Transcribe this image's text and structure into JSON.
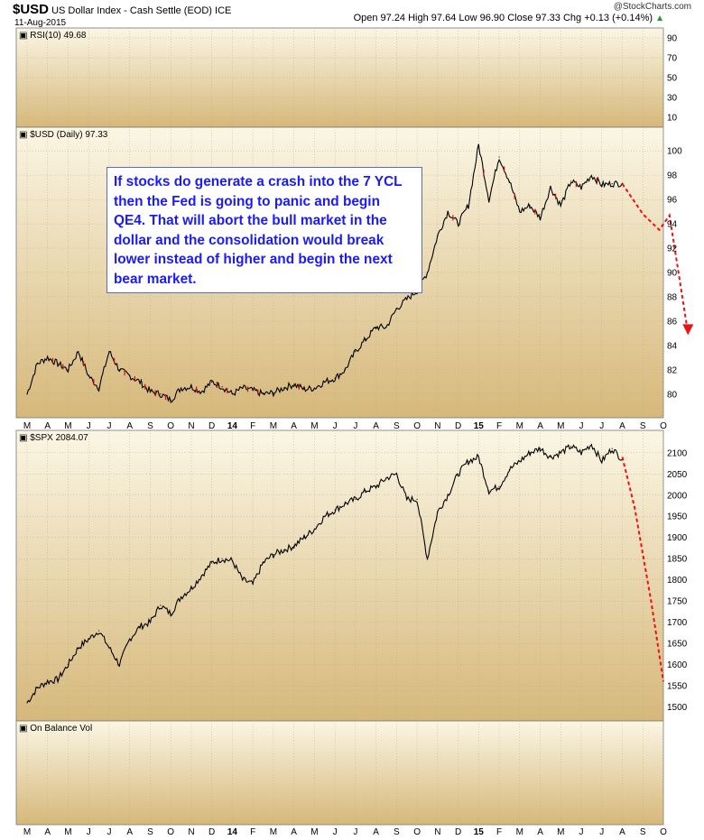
{
  "header": {
    "symbol": "$USD",
    "description": "US Dollar Index - Cash Settle (EOD)  ICE",
    "date": "11-Aug-2015",
    "stats": "Open 97.24  High 97.64  Low 96.90  Close 97.33  Chg +0.13 (+0.14%)",
    "brand": "@StockCharts.com",
    "up_arrow_color": "#1f9a2a"
  },
  "annotation": {
    "text": "If stocks do generate a crash into the 7 YCL then the Fed is going to panic and begin QE4. That will abort the bull market in the dollar and the consolidation would break lower instead of higher and begin the next bear market."
  },
  "colors": {
    "panel_bg": "#ecdcae",
    "grid": "#b8ac8c",
    "price_line": "#000000",
    "down_bar": "#cc1111",
    "projection": "#ee1111"
  },
  "chart_data": [
    {
      "type": "line",
      "panel": "rsi",
      "label": "RSI(10) 49.68",
      "y_ticks": [
        "90",
        "70",
        "50",
        "30",
        "10"
      ],
      "ylim": [
        0,
        100
      ]
    },
    {
      "type": "line",
      "panel": "usd",
      "label": "$USD (Daily) 97.33",
      "ylim": [
        78.5,
        101.5
      ],
      "y_ticks": [
        "100",
        "98",
        "96",
        "94",
        "92",
        "90",
        "88",
        "86",
        "84",
        "82",
        "80"
      ],
      "x_months": [
        "M",
        "A",
        "M",
        "J",
        "J",
        "A",
        "S",
        "O",
        "N",
        "D",
        "14",
        "F",
        "M",
        "A",
        "M",
        "J",
        "J",
        "A",
        "S",
        "O",
        "N",
        "D",
        "15",
        "F",
        "M",
        "A",
        "M",
        "J",
        "J",
        "A",
        "S",
        "O"
      ],
      "series": [
        {
          "x": [
            0,
            0.5,
            1,
            1.5,
            2,
            2.5,
            3,
            3.5,
            4,
            4.5,
            5,
            5.5,
            6,
            6.5,
            7,
            7.5,
            8,
            8.5,
            9,
            9.5,
            10,
            10.5,
            11,
            11.5,
            12,
            12.5,
            13,
            13.5,
            14,
            14.5,
            15,
            15.5,
            16,
            16.5,
            17,
            17.5,
            18,
            18.5,
            19,
            19.5,
            20,
            20.5,
            21,
            21.5,
            22,
            22.5,
            23,
            23.5,
            24,
            24.5,
            25,
            25.5,
            26,
            26.5,
            27,
            27.5,
            28,
            28.5,
            29
          ],
          "y": [
            80.0,
            82.5,
            83.0,
            82.5,
            82.0,
            83.5,
            81.5,
            80.5,
            83.5,
            82.0,
            81.5,
            81.0,
            80.2,
            80.0,
            79.5,
            80.5,
            80.6,
            80.2,
            81.0,
            80.6,
            80.0,
            80.5,
            80.3,
            80.0,
            80.1,
            80.5,
            80.8,
            80.4,
            80.5,
            81.0,
            81.3,
            82.0,
            83.5,
            84.5,
            85.5,
            85.5,
            87.0,
            87.8,
            88.5,
            90.0,
            93.0,
            95.0,
            94.0,
            95.5,
            100.5,
            96.0,
            99.5,
            97.5,
            95.0,
            95.5,
            94.5,
            97.0,
            95.5,
            97.5,
            97.0,
            98.0,
            97.2,
            97.3,
            97.33
          ]
        }
      ],
      "projection": {
        "x": [
          29,
          30,
          30.8,
          31.3,
          32.2
        ],
        "y": [
          97.3,
          94.8,
          93.5,
          94.7,
          85.0
        ]
      }
    },
    {
      "type": "line",
      "panel": "spx",
      "label": "$SPX 2084.07",
      "ylim": [
        1480,
        2140
      ],
      "y_ticks": [
        "2100",
        "2050",
        "2000",
        "1950",
        "1900",
        "1850",
        "1800",
        "1750",
        "1700",
        "1650",
        "1600",
        "1550",
        "1500"
      ],
      "series": [
        {
          "x": [
            0,
            0.5,
            1,
            1.5,
            2,
            2.5,
            3,
            3.5,
            4,
            4.5,
            5,
            5.5,
            6,
            6.5,
            7,
            7.5,
            8,
            8.5,
            9,
            9.5,
            10,
            10.5,
            11,
            11.5,
            12,
            12.5,
            13,
            13.5,
            14,
            14.5,
            15,
            15.5,
            16,
            16.5,
            17,
            17.5,
            18,
            18.5,
            19,
            19.5,
            20,
            20.5,
            21,
            21.5,
            22,
            22.5,
            23,
            23.5,
            24,
            24.5,
            25,
            25.5,
            26,
            26.5,
            27,
            27.5,
            28,
            28.5,
            29
          ],
          "y": [
            1510,
            1545,
            1560,
            1565,
            1600,
            1640,
            1660,
            1680,
            1640,
            1600,
            1660,
            1690,
            1700,
            1740,
            1720,
            1760,
            1780,
            1810,
            1840,
            1850,
            1845,
            1800,
            1790,
            1840,
            1860,
            1870,
            1880,
            1900,
            1920,
            1950,
            1965,
            1980,
            1990,
            2010,
            2020,
            2040,
            2050,
            1990,
            1990,
            1850,
            1960,
            2000,
            2050,
            2080,
            2090,
            2010,
            2020,
            2060,
            2080,
            2100,
            2110,
            2090,
            2100,
            2115,
            2100,
            2120,
            2080,
            2110,
            2084
          ]
        }
      ],
      "projection": {
        "x": [
          29,
          29.6,
          30.4,
          31.0
        ],
        "y": [
          2090,
          1970,
          1750,
          1560
        ]
      }
    },
    {
      "type": "line",
      "panel": "obv",
      "label": "On Balance Vol"
    }
  ]
}
